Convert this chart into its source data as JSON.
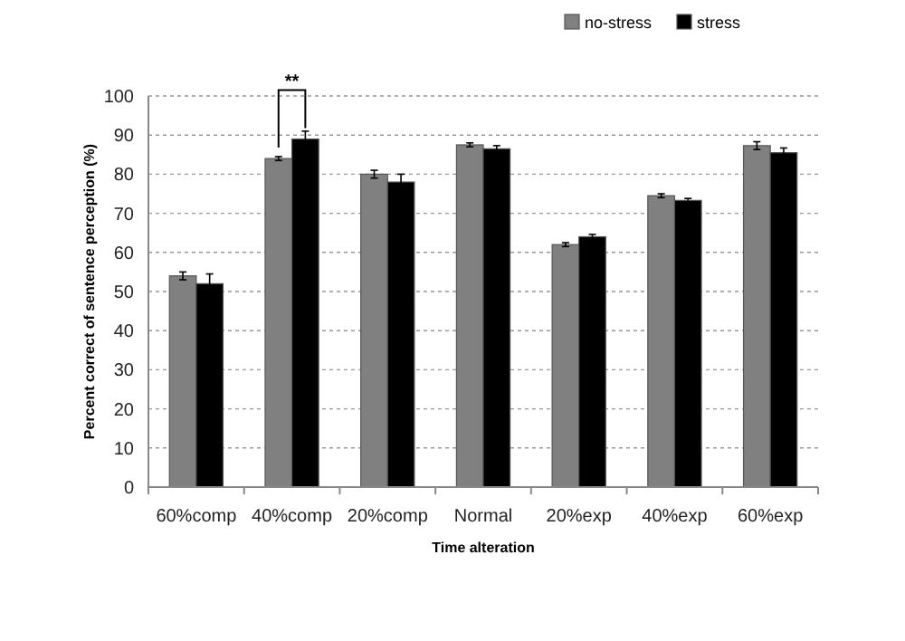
{
  "chart_data": {
    "type": "bar",
    "xlabel": "Time alteration",
    "ylabel": "Percent correct of sentence perception (%)",
    "categories": [
      "60%comp",
      "40%comp",
      "20%comp",
      "Normal",
      "20%exp",
      "40%exp",
      "60%exp"
    ],
    "series": [
      {
        "name": "no-stress",
        "color": "#808080",
        "values": [
          54,
          84,
          80,
          87.5,
          62,
          74.5,
          87.3
        ],
        "errors": [
          1,
          0.5,
          1,
          0.5,
          0.5,
          0.5,
          1
        ]
      },
      {
        "name": "stress",
        "color": "#000000",
        "values": [
          52,
          89,
          78,
          86.5,
          64,
          73.3,
          85.5
        ],
        "errors": [
          2.5,
          2,
          2,
          0.8,
          0.6,
          0.5,
          1.2
        ]
      }
    ],
    "ylim": [
      0,
      100
    ],
    "yticks": [
      0,
      10,
      20,
      30,
      40,
      50,
      60,
      70,
      80,
      90,
      100
    ],
    "grid": "y",
    "legend": "top right",
    "annotations": [
      "**"
    ]
  }
}
